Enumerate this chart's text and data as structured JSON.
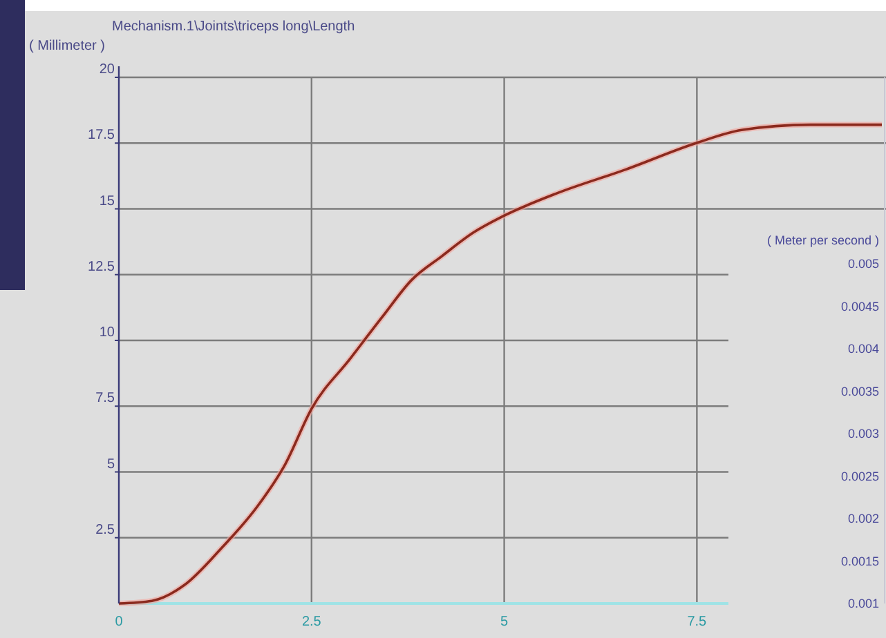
{
  "chart_data": {
    "type": "line",
    "title": "Mechanism.1\\Joints\\triceps long\\Length",
    "ylabel": "( Millimeter )",
    "y2label": "( Meter per second )",
    "x": [
      0,
      0.43,
      0.85,
      1.33,
      1.8,
      2.16,
      2.5,
      3.0,
      3.42,
      3.8,
      4.19,
      4.6,
      4.97,
      5.69,
      6.58,
      7.49,
      8.08,
      8.97,
      9.9
    ],
    "series": [
      {
        "color": "#8b2a1e",
        "values": [
          0,
          0.1,
          0.7,
          2.1,
          3.7,
          5.3,
          7.4,
          9.3,
          10.9,
          12.3,
          13.2,
          14.1,
          14.7,
          15.6,
          16.5,
          17.5,
          18.0,
          18.2,
          18.2
        ]
      }
    ],
    "xlim": [
      0,
      9.9
    ],
    "xticks": [
      0,
      2.5,
      5,
      7.5
    ],
    "ylim": [
      0,
      20
    ],
    "yticks": [
      2.5,
      5,
      7.5,
      10,
      12.5,
      15,
      17.5,
      20
    ],
    "y2lim": [
      0.001,
      0.0072
    ],
    "y2ticks": [
      0.005,
      0.0045,
      0.004,
      0.0035,
      0.003,
      0.0025,
      0.002,
      0.0015,
      0.001
    ],
    "grid": true
  }
}
